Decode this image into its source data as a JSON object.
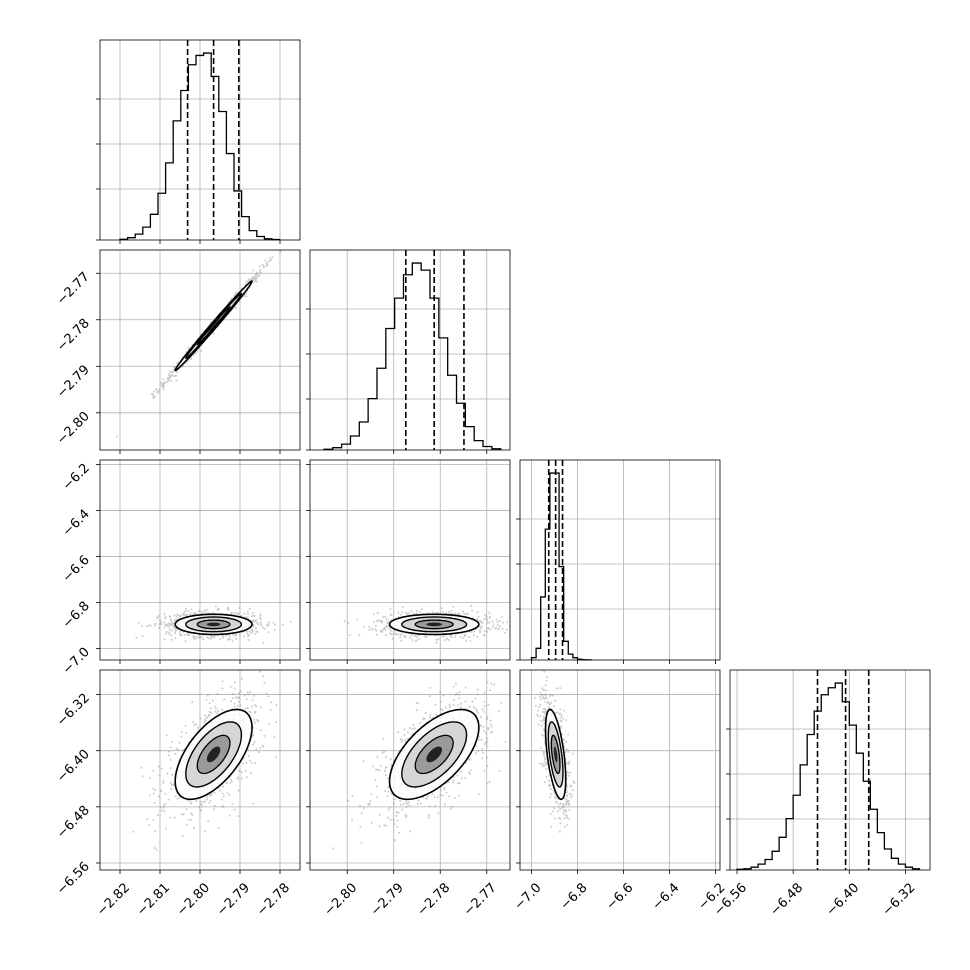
{
  "chart_data": {
    "type": "corner",
    "colors": {
      "line": "#000000",
      "grid": "#b0b0b0",
      "scatter": "#8c8c8c",
      "background": "#ffffff"
    },
    "grid": true,
    "parameters": [
      {
        "range": [
          -2.825,
          -2.775
        ],
        "ticks": [
          "-2.82",
          "-2.81",
          "-2.80",
          "-2.79",
          "-2.78"
        ],
        "tick_values": [
          -2.82,
          -2.81,
          -2.8,
          -2.79,
          -2.78
        ],
        "quantiles": [
          -2.8031,
          -2.7966,
          -2.7903
        ],
        "hist": {
          "bin_edges": [
            -2.82,
            -2.8181,
            -2.8162,
            -2.8143,
            -2.8124,
            -2.8105,
            -2.8086,
            -2.8067,
            -2.8048,
            -2.8029,
            -2.801,
            -2.7991,
            -2.7972,
            -2.7953,
            -2.7934,
            -2.7915,
            -2.7896,
            -2.7877,
            -2.7858,
            -2.7839,
            -2.782,
            -2.7801
          ],
          "counts": [
            0.3,
            1.0,
            2.5,
            5.5,
            11,
            20,
            33,
            51,
            64,
            75,
            79,
            80,
            70,
            55,
            37,
            21,
            10,
            4,
            1.5,
            0.5,
            0.2
          ],
          "max_count": 80
        }
      },
      {
        "range": [
          -2.808,
          -2.765
        ],
        "ticks": [
          "-2.80",
          "-2.79",
          "-2.78",
          "-2.77"
        ],
        "tick_values": [
          -2.8,
          -2.79,
          -2.78,
          -2.77
        ],
        "quantiles": [
          -2.7874,
          -2.7813,
          -2.7749
        ],
        "hist": {
          "bin_edges": [
            -2.805,
            -2.8031,
            -2.8012,
            -2.7993,
            -2.7974,
            -2.7955,
            -2.7936,
            -2.7917,
            -2.7898,
            -2.7879,
            -2.786,
            -2.7841,
            -2.7822,
            -2.7803,
            -2.7784,
            -2.7765,
            -2.7746,
            -2.7727,
            -2.7708,
            -2.7689,
            -2.767
          ],
          "counts": [
            0.3,
            1.0,
            2.5,
            6,
            12,
            22,
            35,
            52,
            65,
            75,
            80,
            77,
            65,
            48,
            32,
            20,
            10,
            4,
            1.5,
            0.5
          ],
          "max_count": 80
        }
      },
      {
        "range": [
          -7.05,
          -6.18
        ],
        "ticks": [
          "-7.0",
          "-6.8",
          "-6.6",
          "-6.4",
          "-6.2"
        ],
        "tick_values": [
          -7.0,
          -6.8,
          -6.6,
          -6.4,
          -6.2
        ],
        "quantiles": [
          -6.925,
          -6.895,
          -6.865
        ],
        "hist": {
          "bin_edges": [
            -7.0,
            -6.98,
            -6.96,
            -6.94,
            -6.92,
            -6.9,
            -6.88,
            -6.86,
            -6.84,
            -6.82,
            -6.8,
            -6.78,
            -6.76,
            -6.74
          ],
          "counts": [
            1.0,
            5.0,
            27,
            56,
            80,
            80,
            40,
            8,
            2.5,
            1.0,
            0.3,
            0.1,
            0.05
          ],
          "max_count": 80
        }
      },
      {
        "range": [
          -6.57,
          -6.285
        ],
        "ticks": [
          "-6.56",
          "-6.48",
          "-6.40",
          "-6.32"
        ],
        "tick_values": [
          -6.56,
          -6.48,
          -6.4,
          -6.32
        ],
        "quantiles": [
          -6.4453,
          -6.4053,
          -6.3723
        ],
        "hist": {
          "bin_edges": [
            -6.56,
            -6.55,
            -6.54,
            -6.53,
            -6.52,
            -6.51,
            -6.5,
            -6.49,
            -6.48,
            -6.47,
            -6.46,
            -6.45,
            -6.44,
            -6.43,
            -6.42,
            -6.41,
            -6.4,
            -6.39,
            -6.38,
            -6.37,
            -6.36,
            -6.35,
            -6.34,
            -6.33,
            -6.32,
            -6.31,
            -6.3
          ],
          "counts": [
            0.3,
            0.5,
            1.2,
            2.5,
            4.5,
            8,
            14,
            22,
            32,
            45,
            58,
            68,
            75,
            78,
            80,
            72,
            62,
            50,
            38,
            26,
            16,
            9,
            5,
            2.5,
            1.2,
            0.5
          ],
          "max_count": 80
        }
      }
    ],
    "pair_densities": [
      {
        "row": 1,
        "col": 0,
        "center": [
          -2.7966,
          -2.7813
        ],
        "sigma": [
          0.0048,
          0.0048
        ],
        "rho": 0.995
      },
      {
        "row": 2,
        "col": 0,
        "center": [
          -2.7966,
          -6.895
        ],
        "sigma": [
          0.0048,
          0.022
        ],
        "rho": 0.0
      },
      {
        "row": 2,
        "col": 1,
        "center": [
          -2.7813,
          -6.895
        ],
        "sigma": [
          0.0048,
          0.022
        ],
        "rho": 0.0
      },
      {
        "row": 3,
        "col": 0,
        "center": [
          -2.7966,
          -6.4053
        ],
        "sigma": [
          0.0048,
          0.032
        ],
        "rho": 0.6
      },
      {
        "row": 3,
        "col": 1,
        "center": [
          -2.7813,
          -6.4053
        ],
        "sigma": [
          0.0048,
          0.032
        ],
        "rho": 0.6
      },
      {
        "row": 3,
        "col": 2,
        "center": [
          -6.895,
          -6.4053
        ],
        "sigma": [
          0.022,
          0.032
        ],
        "rho": -0.55
      }
    ]
  }
}
